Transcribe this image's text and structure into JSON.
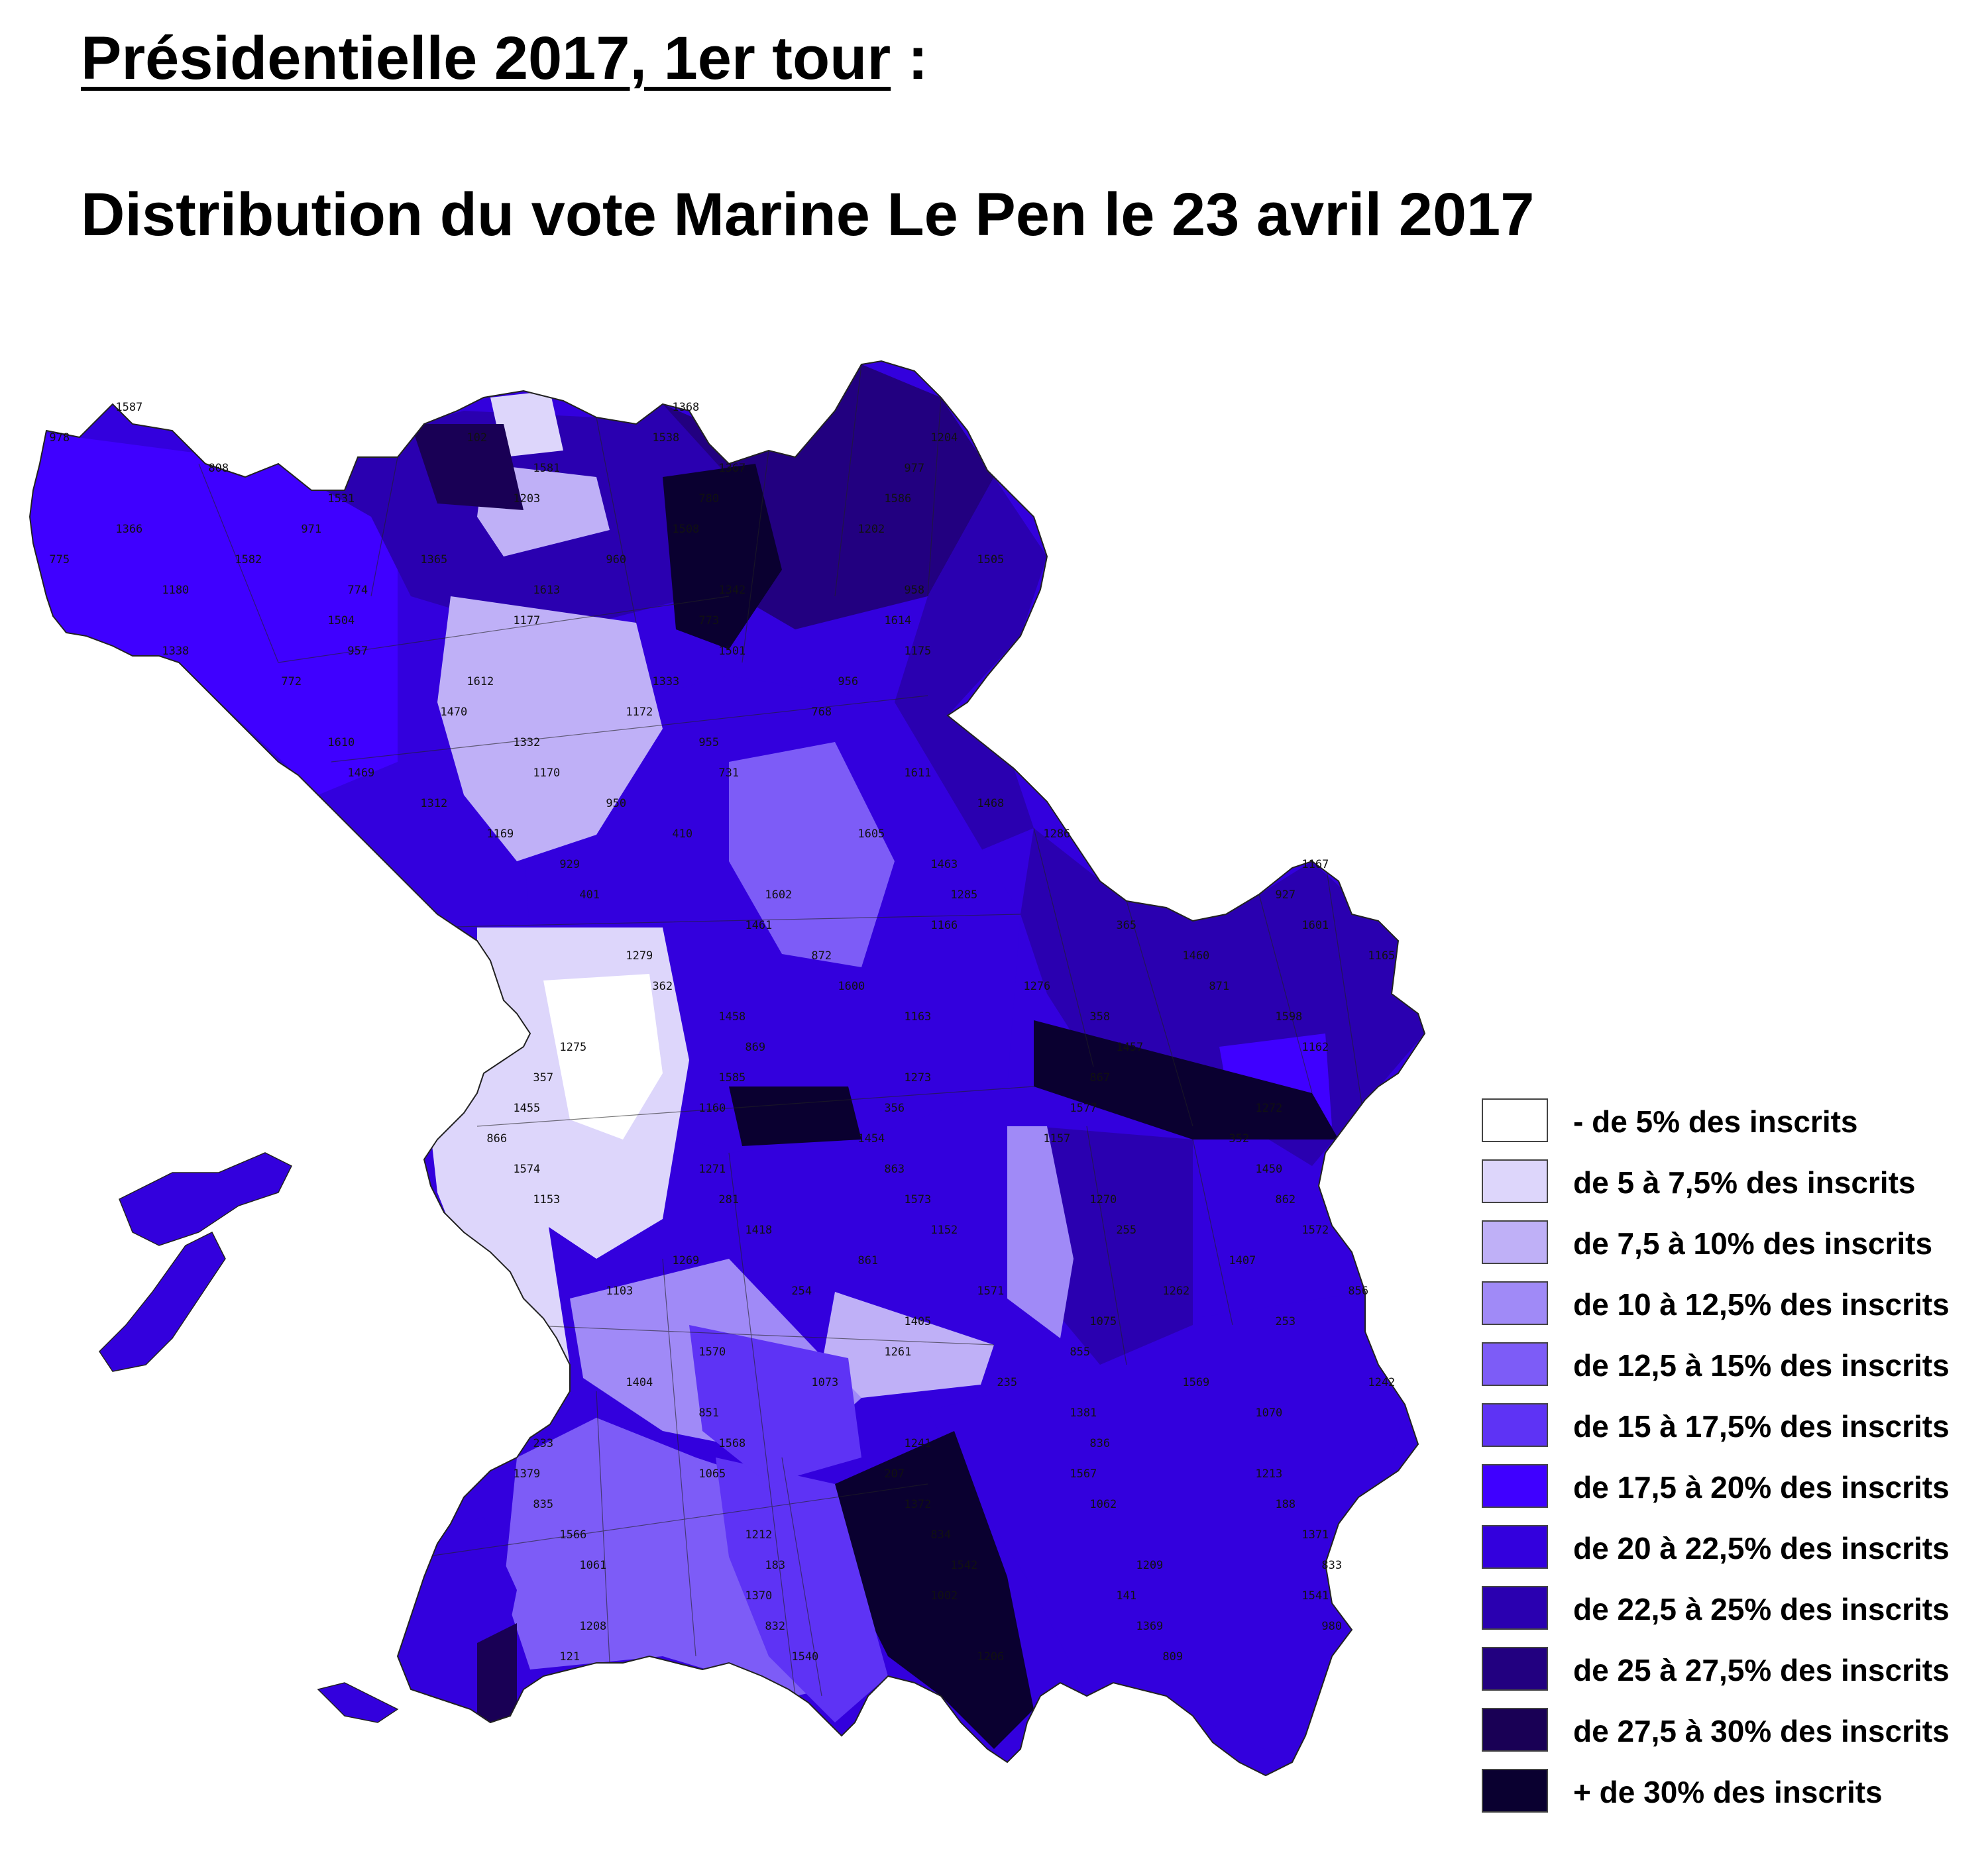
{
  "title": {
    "line1_underlined": "Présidentielle 2017, 1er tour",
    "line1_suffix": " :",
    "line2": "Distribution du vote Marine Le Pen le 23 avril 2017"
  },
  "legend": [
    {
      "label": "- de 5% des inscrits",
      "color": "#ffffff"
    },
    {
      "label": "de 5 à 7,5% des inscrits",
      "color": "#ddd6fb"
    },
    {
      "label": "de 7,5 à 10% des inscrits",
      "color": "#bfb0f7"
    },
    {
      "label": "de 10 à 12,5% des inscrits",
      "color": "#a08af7"
    },
    {
      "label": "de 12,5 à 15% des inscrits",
      "color": "#7d5cf7"
    },
    {
      "label": "de 15 à 17,5% des inscrits",
      "color": "#5e33f5"
    },
    {
      "label": "de 17,5 à 20% des inscrits",
      "color": "#3f00ff"
    },
    {
      "label": "de 20 à 22,5% des inscrits",
      "color": "#3300dd"
    },
    {
      "label": "de 22,5 à 25% des inscrits",
      "color": "#2a00b0"
    },
    {
      "label": "de 25 à 27,5% des inscrits",
      "color": "#220080"
    },
    {
      "label": "de 27,5 à 30% des inscrits",
      "color": "#190055"
    },
    {
      "label": "+ de 30% des inscrits",
      "color": "#0a0030"
    }
  ],
  "map_labels": [
    "1587",
    "1581",
    "1586",
    "1582",
    "1613",
    "1614",
    "1612",
    "1610",
    "1611",
    "1605",
    "1602",
    "1601",
    "1600",
    "1598",
    "1585",
    "1577",
    "1574",
    "1573",
    "1572",
    "1571",
    "1570",
    "1569",
    "1568",
    "1567",
    "1566",
    "1542",
    "1541",
    "1540",
    "1538",
    "1531",
    "1508",
    "1505",
    "1504",
    "1501",
    "1470",
    "1469",
    "1468",
    "1463",
    "1461",
    "1460",
    "1458",
    "1457",
    "1455",
    "1454",
    "1450",
    "1418",
    "1407",
    "1405",
    "1404",
    "1381",
    "1379",
    "1372",
    "1371",
    "1370",
    "1369",
    "1368",
    "1367",
    "1366",
    "1365",
    "1342",
    "1338",
    "1333",
    "1332",
    "1312",
    "1286",
    "1285",
    "1279",
    "1276",
    "1275",
    "1273",
    "1272",
    "1271",
    "1270",
    "1269",
    "1262",
    "1261",
    "1242",
    "1241",
    "1213",
    "1212",
    "1209",
    "1208",
    "1206",
    "1204",
    "1203",
    "1202",
    "1180",
    "1177",
    "1175",
    "1172",
    "1170",
    "1169",
    "1167",
    "1166",
    "1165",
    "1163",
    "1162",
    "1160",
    "1157",
    "1153",
    "1152",
    "1103",
    "1075",
    "1073",
    "1070",
    "1065",
    "1062",
    "1061",
    "1002",
    "980",
    "978",
    "977",
    "971",
    "960",
    "958",
    "957",
    "956",
    "955",
    "950",
    "929",
    "927",
    "872",
    "871",
    "869",
    "867",
    "866",
    "863",
    "862",
    "861",
    "856",
    "855",
    "851",
    "836",
    "835",
    "834",
    "833",
    "832",
    "809",
    "808",
    "780",
    "775",
    "774",
    "773",
    "772",
    "768",
    "731",
    "410",
    "401",
    "365",
    "362",
    "358",
    "357",
    "356",
    "352",
    "281",
    "255",
    "254",
    "253",
    "235",
    "233",
    "207",
    "188",
    "183",
    "141",
    "121",
    "102"
  ]
}
